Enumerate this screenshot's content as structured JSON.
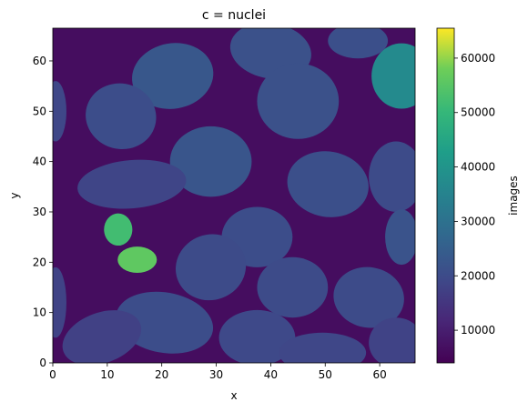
{
  "chart_data": {
    "type": "heatmap",
    "title": "c = nuclei",
    "xlabel": "x",
    "ylabel": "y",
    "xlim": [
      0,
      66.5
    ],
    "ylim": [
      0,
      66.5
    ],
    "x_ticks": [
      0,
      10,
      20,
      30,
      40,
      50,
      60
    ],
    "y_ticks": [
      0,
      10,
      20,
      30,
      40,
      50,
      60
    ],
    "colorbar": {
      "label": "images",
      "colormap": "viridis",
      "range": [
        4000,
        65500
      ],
      "ticks": [
        10000,
        20000,
        30000,
        40000,
        50000,
        60000
      ]
    },
    "background_value": 6500,
    "nuclei": [
      {
        "cx": 22,
        "cy": 57,
        "rx": 7.5,
        "ry": 6.5,
        "rot": -10,
        "value": 23000
      },
      {
        "cx": 40,
        "cy": 62,
        "rx": 7.5,
        "ry": 5.5,
        "rot": 10,
        "value": 21500
      },
      {
        "cx": 64,
        "cy": 57,
        "rx": 5.5,
        "ry": 6.5,
        "rot": 0,
        "value": 37000
      },
      {
        "cx": 56,
        "cy": 64,
        "rx": 5.5,
        "ry": 3.5,
        "rot": 0,
        "value": 21000
      },
      {
        "cx": 45,
        "cy": 52,
        "rx": 7.5,
        "ry": 7.5,
        "rot": 0,
        "value": 21500
      },
      {
        "cx": 12.5,
        "cy": 49,
        "rx": 6.5,
        "ry": 6.5,
        "rot": 15,
        "value": 20500
      },
      {
        "cx": 29,
        "cy": 40,
        "rx": 7.5,
        "ry": 7.0,
        "rot": 0,
        "value": 22500
      },
      {
        "cx": 14.5,
        "cy": 35.5,
        "rx": 10,
        "ry": 4.8,
        "rot": -5,
        "value": 18500
      },
      {
        "cx": 50.5,
        "cy": 35.5,
        "rx": 7.5,
        "ry": 6.5,
        "rot": 10,
        "value": 21000
      },
      {
        "cx": 63,
        "cy": 37,
        "rx": 5,
        "ry": 7,
        "rot": 0,
        "value": 20000
      },
      {
        "cx": 0.5,
        "cy": 50,
        "rx": 2,
        "ry": 6,
        "rot": 0,
        "value": 19000
      },
      {
        "cx": 37.5,
        "cy": 25,
        "rx": 6.5,
        "ry": 6.0,
        "rot": 0,
        "value": 20500
      },
      {
        "cx": 64,
        "cy": 25,
        "rx": 3,
        "ry": 5.5,
        "rot": 0,
        "value": 22000
      },
      {
        "cx": 29,
        "cy": 19,
        "rx": 6.5,
        "ry": 6.5,
        "rot": -20,
        "value": 20000
      },
      {
        "cx": 44,
        "cy": 15,
        "rx": 6.5,
        "ry": 6.0,
        "rot": 0,
        "value": 20000
      },
      {
        "cx": 58,
        "cy": 13,
        "rx": 6.5,
        "ry": 6.0,
        "rot": 10,
        "value": 20000
      },
      {
        "cx": 20.5,
        "cy": 8,
        "rx": 9,
        "ry": 6.0,
        "rot": 10,
        "value": 20500
      },
      {
        "cx": 37.5,
        "cy": 5,
        "rx": 7,
        "ry": 5.5,
        "rot": 0,
        "value": 19500
      },
      {
        "cx": 9,
        "cy": 5,
        "rx": 7.5,
        "ry": 5.0,
        "rot": -20,
        "value": 17500
      },
      {
        "cx": 49.5,
        "cy": 2,
        "rx": 8,
        "ry": 4.0,
        "rot": 0,
        "value": 19000
      },
      {
        "cx": 63,
        "cy": 4,
        "rx": 5,
        "ry": 5.0,
        "rot": 0,
        "value": 18000
      },
      {
        "cx": 0.5,
        "cy": 12,
        "rx": 2,
        "ry": 7,
        "rot": 0,
        "value": 18000
      },
      {
        "cx": 12,
        "cy": 26.5,
        "rx": 2.6,
        "ry": 3.2,
        "rot": 0,
        "value": 52000
      },
      {
        "cx": 15.5,
        "cy": 20.5,
        "rx": 3.6,
        "ry": 2.6,
        "rot": 0,
        "value": 56000
      }
    ]
  }
}
